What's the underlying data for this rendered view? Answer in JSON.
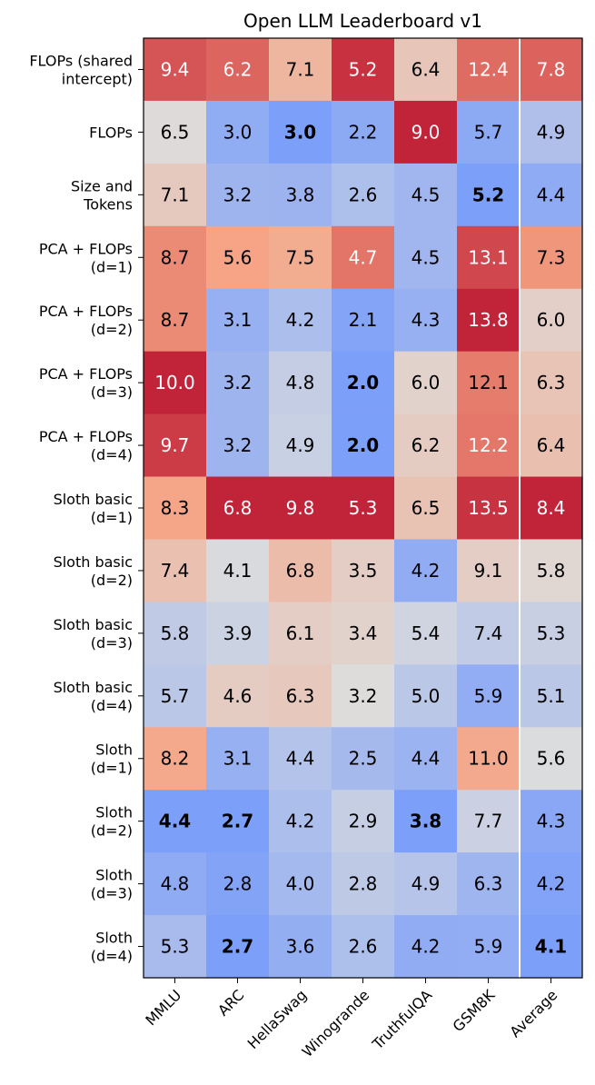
{
  "chart_data": {
    "type": "heatmap",
    "title": "Open LLM Leaderboard v1",
    "columns": [
      "MMLU",
      "ARC",
      "HellaSwag",
      "Winogrande",
      "TruthfulQA",
      "GSM8K",
      "Average"
    ],
    "rows": [
      {
        "label": [
          "FLOPs (shared",
          "intercept)"
        ],
        "values": [
          9.4,
          6.2,
          7.1,
          5.2,
          6.4,
          12.4,
          7.8
        ],
        "bold": []
      },
      {
        "label": [
          "FLOPs"
        ],
        "values": [
          6.5,
          3.0,
          3.0,
          2.2,
          9.0,
          5.7,
          4.9
        ],
        "bold": [
          2
        ]
      },
      {
        "label": [
          "Size and",
          "Tokens"
        ],
        "values": [
          7.1,
          3.2,
          3.8,
          2.6,
          4.5,
          5.2,
          4.4
        ],
        "bold": [
          5
        ]
      },
      {
        "label": [
          "PCA + FLOPs",
          "(d=1)"
        ],
        "values": [
          8.7,
          5.6,
          7.5,
          4.7,
          4.5,
          13.1,
          7.3
        ],
        "bold": []
      },
      {
        "label": [
          "PCA + FLOPs",
          "(d=2)"
        ],
        "values": [
          8.7,
          3.1,
          4.2,
          2.1,
          4.3,
          13.8,
          6.0
        ],
        "bold": []
      },
      {
        "label": [
          "PCA + FLOPs",
          "(d=3)"
        ],
        "values": [
          10.0,
          3.2,
          4.8,
          2.0,
          6.0,
          12.1,
          6.3
        ],
        "bold": [
          3
        ]
      },
      {
        "label": [
          "PCA + FLOPs",
          "(d=4)"
        ],
        "values": [
          9.7,
          3.2,
          4.9,
          2.0,
          6.2,
          12.2,
          6.4
        ],
        "bold": [
          3
        ]
      },
      {
        "label": [
          "Sloth basic",
          "(d=1)"
        ],
        "values": [
          8.3,
          6.8,
          9.8,
          5.3,
          6.5,
          13.5,
          8.4
        ],
        "bold": []
      },
      {
        "label": [
          "Sloth basic",
          "(d=2)"
        ],
        "values": [
          7.4,
          4.1,
          6.8,
          3.5,
          4.2,
          9.1,
          5.8
        ],
        "bold": []
      },
      {
        "label": [
          "Sloth basic",
          "(d=3)"
        ],
        "values": [
          5.8,
          3.9,
          6.1,
          3.4,
          5.4,
          7.4,
          5.3
        ],
        "bold": []
      },
      {
        "label": [
          "Sloth basic",
          "(d=4)"
        ],
        "values": [
          5.7,
          4.6,
          6.3,
          3.2,
          5.0,
          5.9,
          5.1
        ],
        "bold": []
      },
      {
        "label": [
          "Sloth",
          "(d=1)"
        ],
        "values": [
          8.2,
          3.1,
          4.4,
          2.5,
          4.4,
          11.0,
          5.6
        ],
        "bold": []
      },
      {
        "label": [
          "Sloth",
          "(d=2)"
        ],
        "values": [
          4.4,
          2.7,
          4.2,
          2.9,
          3.8,
          7.7,
          4.3
        ],
        "bold": [
          0,
          1,
          4
        ]
      },
      {
        "label": [
          "Sloth",
          "(d=3)"
        ],
        "values": [
          4.8,
          2.8,
          4.0,
          2.8,
          4.9,
          6.3,
          4.2
        ],
        "bold": []
      },
      {
        "label": [
          "Sloth",
          "(d=4)"
        ],
        "values": [
          5.3,
          2.7,
          3.6,
          2.6,
          4.2,
          5.9,
          4.1
        ],
        "bold": [
          1,
          6
        ]
      }
    ],
    "colormap": "coolwarm (per-column normalization)",
    "separator_before_column": "Average"
  }
}
